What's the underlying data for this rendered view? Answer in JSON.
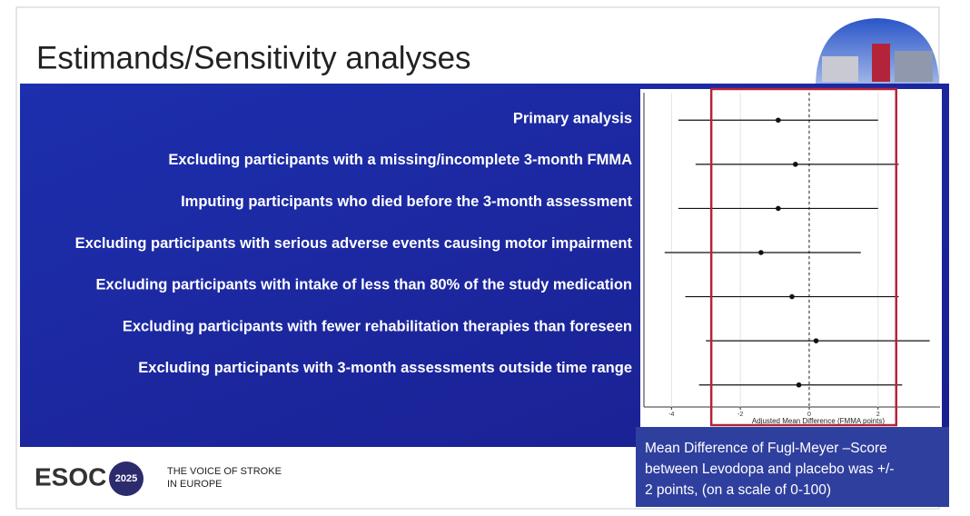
{
  "slide_title": "Estimands/Sensitivity analyses",
  "chart_data": {
    "type": "forest",
    "categories": [
      "Primary analysis",
      "Excluding participants with a missing/incomplete 3-month FMMA",
      "Imputing participants who died before the 3-month assessment",
      "Excluding participants with serious adverse events causing motor impairment",
      "Excluding participants with intake of less than 80% of the study medication",
      "Excluding participants with fewer rehabilitation therapies than foreseen",
      "Excluding participants with 3-month assessments outside time range"
    ],
    "values": [
      -0.9,
      -0.4,
      -0.9,
      -1.4,
      -0.5,
      0.2,
      -0.3
    ],
    "ci_lower": [
      -3.8,
      -3.3,
      -3.8,
      -4.2,
      -3.6,
      -3.0,
      -3.2
    ],
    "ci_upper": [
      2.0,
      2.6,
      2.0,
      1.5,
      2.6,
      3.5,
      2.7
    ],
    "xlim": [
      -4.8,
      3.8
    ],
    "xticks": [
      -4,
      -2,
      0,
      2
    ],
    "x_label": "Adjusted Mean Difference (FMMA points)",
    "grid": true,
    "color": "#111111",
    "highlight_range": [
      -2,
      2
    ]
  },
  "logo": {
    "name": "ESOC",
    "year": "2025",
    "tagline": [
      "THE VOICE OF STROKE",
      "IN EUROPE"
    ]
  },
  "note": [
    "Mean Difference of Fugl-Meyer –Score",
    "between Levodopa and placebo was +/-",
    "2 points, (on a scale of 0-100)"
  ]
}
